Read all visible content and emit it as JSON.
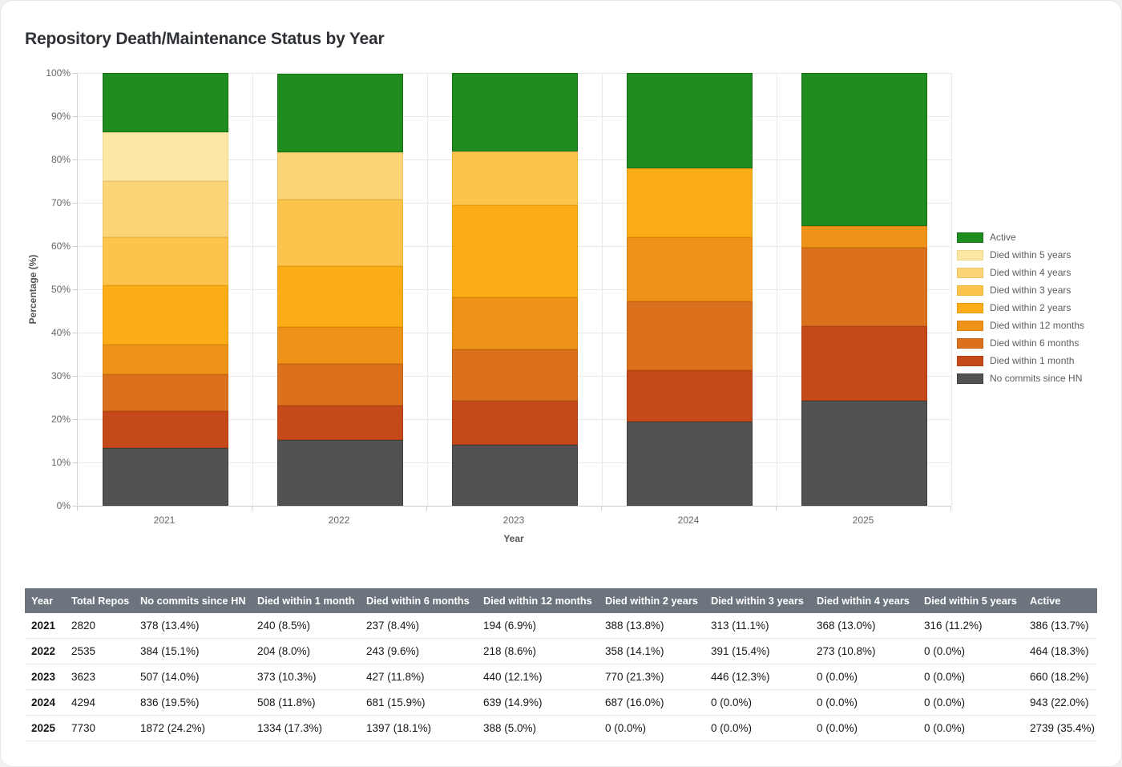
{
  "page": {
    "title": "Repository Death/Maintenance Status by Year"
  },
  "chart_data": {
    "type": "bar",
    "stacked": true,
    "title": "Repository Death/Maintenance Status by Year",
    "xlabel": "Year",
    "ylabel": "Percentage (%)",
    "ylim": [
      0,
      100
    ],
    "y_tick_step": 10,
    "y_tick_suffix": "%",
    "grid": true,
    "legend_position": "right",
    "categories": [
      "2021",
      "2022",
      "2023",
      "2024",
      "2025"
    ],
    "series": [
      {
        "name": "No commits since HN",
        "color": "#525252",
        "border": "#3e3e3e",
        "values": [
          13.4,
          15.1,
          14.0,
          19.5,
          24.2
        ]
      },
      {
        "name": "Died within 1 month",
        "color": "#c64a19",
        "border": "#b04013",
        "values": [
          8.5,
          8.0,
          10.3,
          11.8,
          17.3
        ]
      },
      {
        "name": "Died within 6 months",
        "color": "#db711c",
        "border": "#c66314",
        "values": [
          8.4,
          9.6,
          11.8,
          15.9,
          18.1
        ]
      },
      {
        "name": "Died within 12 months",
        "color": "#ee9318",
        "border": "#d98410",
        "values": [
          6.9,
          8.6,
          12.1,
          14.9,
          5.0
        ]
      },
      {
        "name": "Died within 2 years",
        "color": "#fbad18",
        "border": "#e69d0f",
        "values": [
          13.8,
          14.1,
          21.3,
          16.0,
          0
        ]
      },
      {
        "name": "Died within 3 years",
        "color": "#fcc44c",
        "border": "#efb43c",
        "values": [
          11.1,
          15.4,
          12.3,
          0,
          0
        ]
      },
      {
        "name": "Died within 4 years",
        "color": "#fbd577",
        "border": "#edc363",
        "values": [
          13.0,
          10.8,
          0,
          0,
          0
        ]
      },
      {
        "name": "Died within 5 years",
        "color": "#fce8a4",
        "border": "#efd88c",
        "values": [
          11.2,
          0,
          0,
          0,
          0
        ]
      },
      {
        "name": "Active",
        "color": "#1e8c1e",
        "border": "#177017",
        "values": [
          13.7,
          18.3,
          18.2,
          22.0,
          35.4
        ]
      }
    ]
  },
  "table": {
    "columns": [
      "Year",
      "Total Repos",
      "No commits since HN",
      "Died within 1 month",
      "Died within 6 months",
      "Died within 12 months",
      "Died within 2 years",
      "Died within 3 years",
      "Died within 4 years",
      "Died within 5 years",
      "Active"
    ],
    "rows": [
      [
        "2021",
        "2820",
        "378 (13.4%)",
        "240 (8.5%)",
        "237 (8.4%)",
        "194 (6.9%)",
        "388 (13.8%)",
        "313 (11.1%)",
        "368 (13.0%)",
        "316 (11.2%)",
        "386 (13.7%)"
      ],
      [
        "2022",
        "2535",
        "384 (15.1%)",
        "204 (8.0%)",
        "243 (9.6%)",
        "218 (8.6%)",
        "358 (14.1%)",
        "391 (15.4%)",
        "273 (10.8%)",
        "0 (0.0%)",
        "464 (18.3%)"
      ],
      [
        "2023",
        "3623",
        "507 (14.0%)",
        "373 (10.3%)",
        "427 (11.8%)",
        "440 (12.1%)",
        "770 (21.3%)",
        "446 (12.3%)",
        "0 (0.0%)",
        "0 (0.0%)",
        "660 (18.2%)"
      ],
      [
        "2024",
        "4294",
        "836 (19.5%)",
        "508 (11.8%)",
        "681 (15.9%)",
        "639 (14.9%)",
        "687 (16.0%)",
        "0 (0.0%)",
        "0 (0.0%)",
        "0 (0.0%)",
        "943 (22.0%)"
      ],
      [
        "2025",
        "7730",
        "1872 (24.2%)",
        "1334 (17.3%)",
        "1397 (18.1%)",
        "388 (5.0%)",
        "0 (0.0%)",
        "0 (0.0%)",
        "0 (0.0%)",
        "0 (0.0%)",
        "2739 (35.4%)"
      ]
    ]
  },
  "colors": {
    "header_bg": "#6c757d",
    "header_text": "#ffffff",
    "grid": "#e9e9e9",
    "axis": "#c9c9c9",
    "tick_text": "#666666",
    "title_text": "#2e3135"
  }
}
